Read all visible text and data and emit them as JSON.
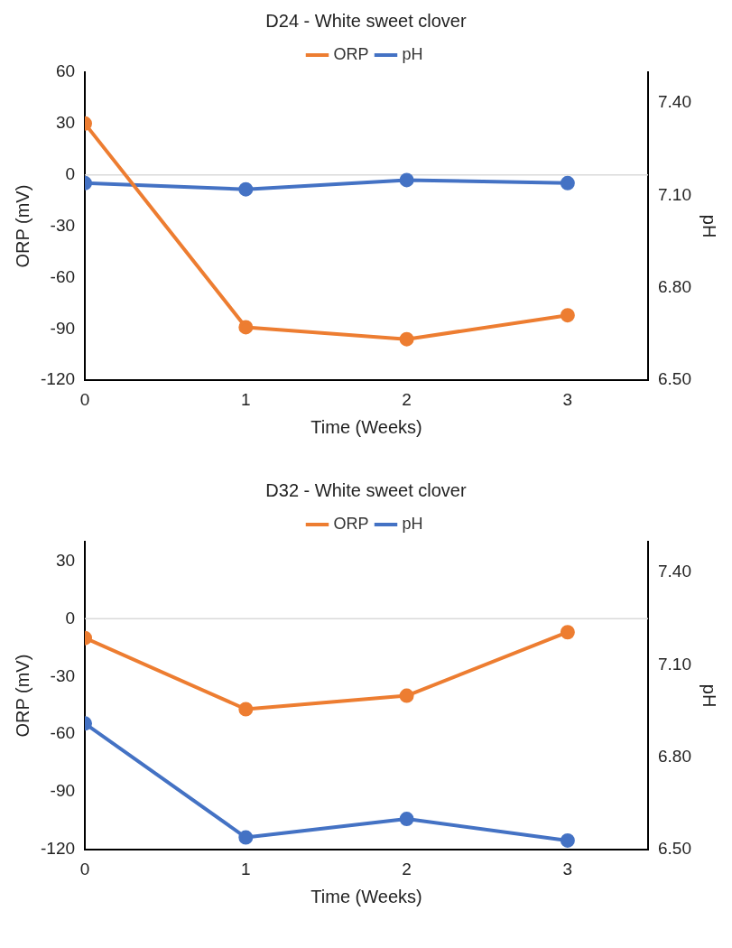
{
  "chart_data": [
    {
      "type": "line",
      "title": "D24 - White sweet clover",
      "xlabel": "Time (Weeks)",
      "ylabel": "ORP (mV)",
      "y2label": "pH",
      "x": [
        0,
        1,
        2,
        3
      ],
      "xlim": [
        0,
        3.5
      ],
      "xticks": [
        0,
        1,
        2,
        3
      ],
      "ylim": [
        -120,
        60
      ],
      "yticks": [
        -120,
        -90,
        -60,
        -30,
        0,
        30,
        60
      ],
      "y2lim": [
        6.5,
        7.5
      ],
      "y2ticks": [
        {
          "value": 6.5,
          "label": "6.50"
        },
        {
          "value": 6.8,
          "label": "6.80"
        },
        {
          "value": 7.1,
          "label": "7.10"
        },
        {
          "value": 7.4,
          "label": "7.40"
        }
      ],
      "series": [
        {
          "name": "ORP",
          "color": "#ed7d31",
          "values": [
            30,
            -89,
            -96,
            -82
          ]
        },
        {
          "name": "pH",
          "color": "#4472c4",
          "axis": "y2",
          "values": [
            7.14,
            7.12,
            7.15,
            7.14
          ]
        }
      ],
      "ref_lines": [
        {
          "axis": "y",
          "value": 0,
          "color": "#d9d9d9"
        }
      ],
      "grid": false,
      "legend": "top",
      "marker": "circle",
      "line_style": "solid"
    },
    {
      "type": "line",
      "title": "D32 - White sweet clover",
      "xlabel": "Time (Weeks)",
      "ylabel": "ORP (mV)",
      "y2label": "pH",
      "x": [
        0,
        1,
        2,
        3
      ],
      "xlim": [
        0,
        3.5
      ],
      "xticks": [
        0,
        1,
        2,
        3
      ],
      "ylim": [
        -120,
        40
      ],
      "yticks": [
        -120,
        -90,
        -60,
        -30,
        0,
        30
      ],
      "y2lim": [
        6.5,
        7.5
      ],
      "y2ticks": [
        {
          "value": 6.5,
          "label": "6.50"
        },
        {
          "value": 6.8,
          "label": "6.80"
        },
        {
          "value": 7.1,
          "label": "7.10"
        },
        {
          "value": 7.4,
          "label": "7.40"
        }
      ],
      "series": [
        {
          "name": "ORP",
          "color": "#ed7d31",
          "values": [
            -10,
            -47,
            -40,
            -7
          ]
        },
        {
          "name": "pH",
          "color": "#4472c4",
          "axis": "y2",
          "values": [
            6.91,
            6.54,
            6.6,
            6.53
          ]
        }
      ],
      "ref_lines": [
        {
          "axis": "y",
          "value": 0,
          "color": "#d9d9d9"
        }
      ],
      "grid": false,
      "legend": "top",
      "marker": "circle",
      "line_style": "solid"
    }
  ]
}
